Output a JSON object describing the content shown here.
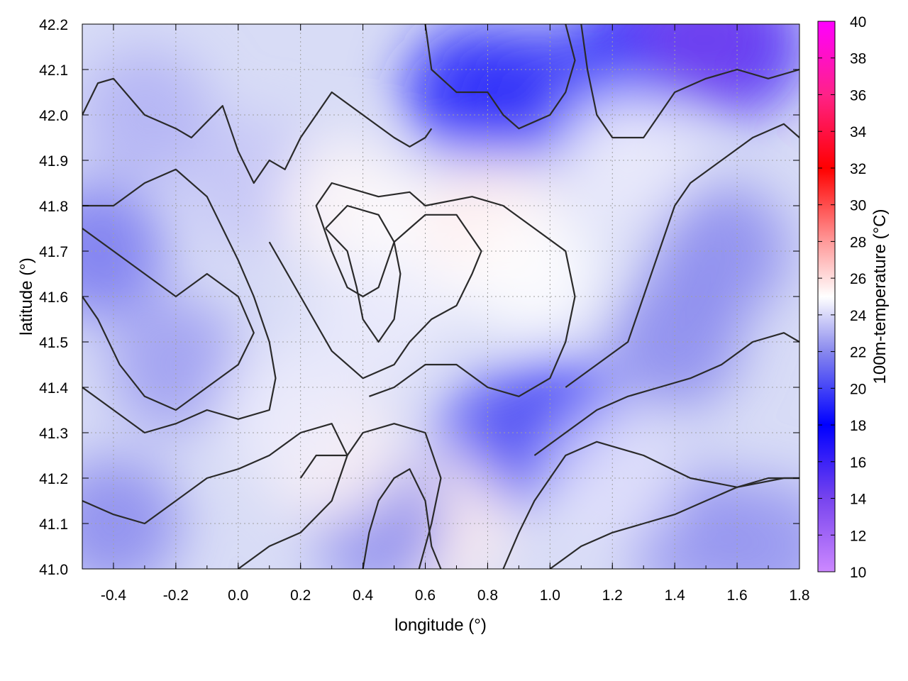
{
  "chart_data": {
    "type": "heatmap",
    "title": "",
    "xlabel": "longitude (°)",
    "ylabel": "latitude (°)",
    "colorbar_label": "100m-temperature (°C)",
    "xlim": [
      -0.5,
      1.8
    ],
    "ylim": [
      41.0,
      42.2
    ],
    "x_ticks": [
      -0.4,
      -0.2,
      0.0,
      0.2,
      0.4,
      0.6,
      0.8,
      1.0,
      1.2,
      1.4,
      1.6,
      1.8
    ],
    "x_tick_labels": [
      "-0.4",
      "-0.2",
      "0.0",
      "0.2",
      "0.4",
      "0.6",
      "0.8",
      "1.0",
      "1.2",
      "1.4",
      "1.6",
      "1.8"
    ],
    "y_ticks": [
      41.0,
      41.1,
      41.2,
      41.3,
      41.4,
      41.5,
      41.6,
      41.7,
      41.8,
      41.9,
      42.0,
      42.1,
      42.2
    ],
    "y_tick_labels": [
      "41.0",
      "41.1",
      "41.2",
      "41.3",
      "41.4",
      "41.5",
      "41.6",
      "41.7",
      "41.8",
      "41.9",
      "42.0",
      "42.1",
      "42.2"
    ],
    "colorbar": {
      "range": [
        10,
        40
      ],
      "ticks": [
        10,
        12,
        14,
        16,
        18,
        20,
        22,
        24,
        26,
        28,
        30,
        32,
        34,
        36,
        38,
        40
      ],
      "tick_labels": [
        "10",
        "12",
        "14",
        "16",
        "18",
        "20",
        "22",
        "24",
        "26",
        "28",
        "30",
        "32",
        "34",
        "36",
        "38",
        "40"
      ],
      "palette_stops": [
        {
          "value": 10,
          "color": "#cc88ff"
        },
        {
          "value": 14,
          "color": "#7744ee"
        },
        {
          "value": 18,
          "color": "#0000ff"
        },
        {
          "value": 22,
          "color": "#8888ee"
        },
        {
          "value": 25,
          "color": "#ffffff"
        },
        {
          "value": 28,
          "color": "#ff9999"
        },
        {
          "value": 32,
          "color": "#ff0000"
        },
        {
          "value": 36,
          "color": "#ff2288"
        },
        {
          "value": 40,
          "color": "#ff00ff"
        }
      ]
    },
    "grid": true,
    "contours": true,
    "field_samples": [
      {
        "x": -0.45,
        "y": 41.7,
        "v": 21.5
      },
      {
        "x": -0.2,
        "y": 41.45,
        "v": 22.5
      },
      {
        "x": 0.05,
        "y": 41.85,
        "v": 23.5
      },
      {
        "x": -0.3,
        "y": 42.0,
        "v": 23.0
      },
      {
        "x": 0.35,
        "y": 41.8,
        "v": 25.2
      },
      {
        "x": 0.6,
        "y": 41.7,
        "v": 25.0
      },
      {
        "x": 0.8,
        "y": 41.78,
        "v": 25.5
      },
      {
        "x": 0.95,
        "y": 41.65,
        "v": 25.0
      },
      {
        "x": 0.75,
        "y": 42.05,
        "v": 19.0
      },
      {
        "x": 0.95,
        "y": 42.05,
        "v": 19.5
      },
      {
        "x": 1.3,
        "y": 42.15,
        "v": 19.0
      },
      {
        "x": 1.6,
        "y": 42.15,
        "v": 16.5
      },
      {
        "x": 1.5,
        "y": 42.18,
        "v": 14.0
      },
      {
        "x": 1.55,
        "y": 41.7,
        "v": 22.0
      },
      {
        "x": 1.4,
        "y": 41.5,
        "v": 22.0
      },
      {
        "x": 1.02,
        "y": 41.32,
        "v": 19.5
      },
      {
        "x": 0.85,
        "y": 41.28,
        "v": 20.5
      },
      {
        "x": 0.65,
        "y": 41.1,
        "v": 25.5
      },
      {
        "x": 0.45,
        "y": 41.1,
        "v": 22.0
      },
      {
        "x": 0.3,
        "y": 41.25,
        "v": 25.3
      },
      {
        "x": 1.45,
        "y": 41.08,
        "v": 22.3
      },
      {
        "x": 1.7,
        "y": 41.05,
        "v": 22.3
      },
      {
        "x": 1.2,
        "y": 41.2,
        "v": 24.3
      },
      {
        "x": -0.4,
        "y": 41.1,
        "v": 22.0
      },
      {
        "x": 0.15,
        "y": 41.35,
        "v": 24.5
      },
      {
        "x": 1.25,
        "y": 41.9,
        "v": 24.5
      },
      {
        "x": 0.45,
        "y": 41.55,
        "v": 24.5
      }
    ],
    "contour_paths": [
      {
        "name": "contour-north-1",
        "points": [
          [
            -0.5,
            42.0
          ],
          [
            -0.45,
            42.07
          ],
          [
            -0.4,
            42.08
          ],
          [
            -0.3,
            42.0
          ],
          [
            -0.2,
            41.97
          ],
          [
            -0.15,
            41.95
          ],
          [
            -0.05,
            42.02
          ],
          [
            0.0,
            41.92
          ],
          [
            0.05,
            41.85
          ],
          [
            0.1,
            41.9
          ],
          [
            0.15,
            41.88
          ],
          [
            0.2,
            41.95
          ],
          [
            0.25,
            42.0
          ],
          [
            0.3,
            42.05
          ],
          [
            0.4,
            42.0
          ],
          [
            0.5,
            41.95
          ],
          [
            0.55,
            41.93
          ],
          [
            0.6,
            41.95
          ],
          [
            0.62,
            41.97
          ]
        ]
      },
      {
        "name": "contour-central-warm",
        "points": [
          [
            0.1,
            41.72
          ],
          [
            0.2,
            41.6
          ],
          [
            0.3,
            41.48
          ],
          [
            0.4,
            41.42
          ],
          [
            0.5,
            41.45
          ],
          [
            0.55,
            41.5
          ],
          [
            0.62,
            41.55
          ],
          [
            0.7,
            41.58
          ],
          [
            0.75,
            41.65
          ],
          [
            0.78,
            41.7
          ],
          [
            0.7,
            41.78
          ],
          [
            0.6,
            41.78
          ],
          [
            0.55,
            41.75
          ],
          [
            0.5,
            41.72
          ],
          [
            0.45,
            41.62
          ],
          [
            0.4,
            41.6
          ],
          [
            0.35,
            41.62
          ],
          [
            0.3,
            41.7
          ],
          [
            0.25,
            41.8
          ],
          [
            0.3,
            41.85
          ],
          [
            0.45,
            41.82
          ],
          [
            0.55,
            41.83
          ],
          [
            0.6,
            41.8
          ],
          [
            0.75,
            41.82
          ],
          [
            0.85,
            41.8
          ],
          [
            0.95,
            41.75
          ],
          [
            1.05,
            41.7
          ],
          [
            1.08,
            41.6
          ],
          [
            1.05,
            41.5
          ],
          [
            1.0,
            41.42
          ],
          [
            0.9,
            41.38
          ],
          [
            0.8,
            41.4
          ],
          [
            0.7,
            41.45
          ],
          [
            0.6,
            41.45
          ],
          [
            0.5,
            41.4
          ],
          [
            0.42,
            41.38
          ]
        ]
      },
      {
        "name": "contour-west-1",
        "points": [
          [
            -0.5,
            41.75
          ],
          [
            -0.4,
            41.7
          ],
          [
            -0.3,
            41.65
          ],
          [
            -0.2,
            41.6
          ],
          [
            -0.1,
            41.65
          ],
          [
            0.0,
            41.6
          ],
          [
            0.05,
            41.52
          ],
          [
            0.0,
            41.45
          ],
          [
            -0.1,
            41.4
          ],
          [
            -0.2,
            41.35
          ],
          [
            -0.3,
            41.38
          ],
          [
            -0.38,
            41.45
          ],
          [
            -0.45,
            41.55
          ],
          [
            -0.5,
            41.6
          ]
        ]
      },
      {
        "name": "contour-west-2",
        "points": [
          [
            -0.5,
            41.4
          ],
          [
            -0.4,
            41.35
          ],
          [
            -0.3,
            41.3
          ],
          [
            -0.2,
            41.32
          ],
          [
            -0.1,
            41.35
          ],
          [
            0.0,
            41.33
          ],
          [
            0.1,
            41.35
          ],
          [
            0.12,
            41.42
          ],
          [
            0.1,
            41.5
          ],
          [
            0.05,
            41.6
          ],
          [
            0.0,
            41.68
          ],
          [
            -0.05,
            41.75
          ],
          [
            -0.1,
            41.82
          ],
          [
            -0.2,
            41.88
          ],
          [
            -0.3,
            41.85
          ],
          [
            -0.4,
            41.8
          ],
          [
            -0.5,
            41.8
          ]
        ]
      },
      {
        "name": "contour-south-west",
        "points": [
          [
            -0.5,
            41.15
          ],
          [
            -0.4,
            41.12
          ],
          [
            -0.3,
            41.1
          ],
          [
            -0.2,
            41.15
          ],
          [
            -0.1,
            41.2
          ],
          [
            0.0,
            41.22
          ],
          [
            0.1,
            41.25
          ],
          [
            0.2,
            41.3
          ],
          [
            0.3,
            41.32
          ],
          [
            0.35,
            41.25
          ],
          [
            0.3,
            41.15
          ],
          [
            0.2,
            41.08
          ],
          [
            0.1,
            41.05
          ],
          [
            0.0,
            41.0
          ]
        ]
      },
      {
        "name": "contour-east-1",
        "points": [
          [
            1.05,
            41.4
          ],
          [
            1.15,
            41.45
          ],
          [
            1.25,
            41.5
          ],
          [
            1.3,
            41.6
          ],
          [
            1.35,
            41.7
          ],
          [
            1.4,
            41.8
          ],
          [
            1.45,
            41.85
          ],
          [
            1.55,
            41.9
          ],
          [
            1.65,
            41.95
          ],
          [
            1.75,
            41.98
          ],
          [
            1.8,
            41.95
          ]
        ]
      },
      {
        "name": "contour-east-2",
        "points": [
          [
            0.95,
            41.25
          ],
          [
            1.05,
            41.3
          ],
          [
            1.15,
            41.35
          ],
          [
            1.25,
            41.38
          ],
          [
            1.35,
            41.4
          ],
          [
            1.45,
            41.42
          ],
          [
            1.55,
            41.45
          ],
          [
            1.65,
            41.5
          ],
          [
            1.75,
            41.52
          ],
          [
            1.8,
            41.5
          ]
        ]
      },
      {
        "name": "contour-south-east",
        "points": [
          [
            0.85,
            41.0
          ],
          [
            0.9,
            41.08
          ],
          [
            0.95,
            41.15
          ],
          [
            1.0,
            41.2
          ],
          [
            1.05,
            41.25
          ],
          [
            1.15,
            41.28
          ],
          [
            1.3,
            41.25
          ],
          [
            1.45,
            41.2
          ],
          [
            1.6,
            41.18
          ],
          [
            1.75,
            41.2
          ],
          [
            1.8,
            41.2
          ]
        ]
      },
      {
        "name": "contour-coast",
        "points": [
          [
            1.0,
            41.0
          ],
          [
            1.1,
            41.05
          ],
          [
            1.2,
            41.08
          ],
          [
            1.3,
            41.1
          ],
          [
            1.4,
            41.12
          ],
          [
            1.5,
            41.15
          ],
          [
            1.6,
            41.18
          ],
          [
            1.7,
            41.2
          ],
          [
            1.8,
            41.2
          ]
        ]
      },
      {
        "name": "contour-north-east",
        "points": [
          [
            1.1,
            42.2
          ],
          [
            1.12,
            42.1
          ],
          [
            1.15,
            42.0
          ],
          [
            1.2,
            41.95
          ],
          [
            1.3,
            41.95
          ],
          [
            1.35,
            42.0
          ],
          [
            1.4,
            42.05
          ],
          [
            1.5,
            42.08
          ],
          [
            1.6,
            42.1
          ],
          [
            1.7,
            42.08
          ],
          [
            1.8,
            42.1
          ]
        ]
      },
      {
        "name": "contour-north-cold",
        "points": [
          [
            0.6,
            42.2
          ],
          [
            0.62,
            42.1
          ],
          [
            0.7,
            42.05
          ],
          [
            0.8,
            42.05
          ],
          [
            0.85,
            42.0
          ],
          [
            0.9,
            41.97
          ],
          [
            1.0,
            42.0
          ],
          [
            1.05,
            42.05
          ],
          [
            1.08,
            42.12
          ],
          [
            1.05,
            42.2
          ]
        ]
      },
      {
        "name": "contour-inner-warm-1",
        "points": [
          [
            0.28,
            41.75
          ],
          [
            0.35,
            41.7
          ],
          [
            0.38,
            41.62
          ],
          [
            0.4,
            41.55
          ],
          [
            0.45,
            41.5
          ],
          [
            0.5,
            41.55
          ],
          [
            0.52,
            41.65
          ],
          [
            0.5,
            41.72
          ],
          [
            0.45,
            41.78
          ],
          [
            0.35,
            41.8
          ],
          [
            0.28,
            41.75
          ]
        ]
      },
      {
        "name": "contour-south-warm",
        "points": [
          [
            0.2,
            41.2
          ],
          [
            0.25,
            41.25
          ],
          [
            0.35,
            41.25
          ],
          [
            0.4,
            41.3
          ],
          [
            0.5,
            41.32
          ],
          [
            0.6,
            41.3
          ],
          [
            0.65,
            41.2
          ],
          [
            0.62,
            41.1
          ],
          [
            0.58,
            41.0
          ]
        ]
      },
      {
        "name": "contour-south-2",
        "points": [
          [
            0.4,
            41.0
          ],
          [
            0.42,
            41.08
          ],
          [
            0.45,
            41.15
          ],
          [
            0.5,
            41.2
          ],
          [
            0.55,
            41.22
          ],
          [
            0.6,
            41.15
          ],
          [
            0.62,
            41.05
          ],
          [
            0.65,
            41.0
          ]
        ]
      }
    ]
  }
}
